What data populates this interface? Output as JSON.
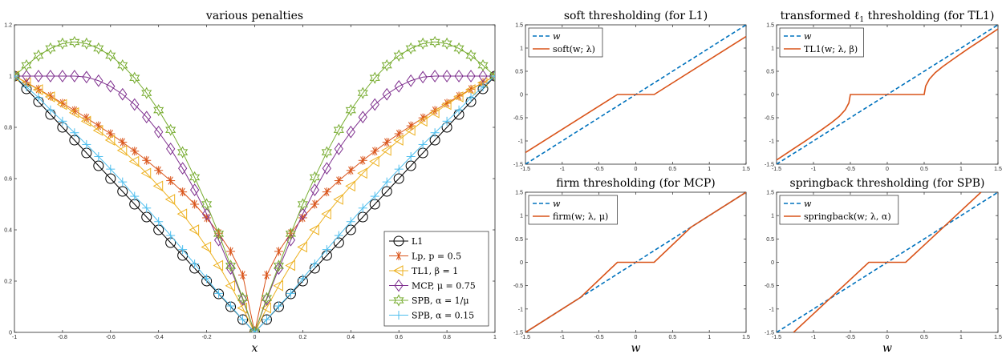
{
  "chart_data": [
    {
      "id": "penalties",
      "type": "line",
      "title": "various penalties",
      "xlabel": "x",
      "ylabel": "",
      "xlim": [
        -1,
        1
      ],
      "ylim": [
        0,
        1.2
      ],
      "xticks": [
        "-1",
        "-0.8",
        "-0.6",
        "-0.4",
        "-0.2",
        "0",
        "0.2",
        "0.4",
        "0.6",
        "0.8",
        "1"
      ],
      "yticks": [
        "0",
        "0.2",
        "0.4",
        "0.6",
        "0.8",
        "1",
        "1.2"
      ],
      "legend_position": "bottom-right",
      "series": [
        {
          "name": "L1",
          "color": "#000000",
          "marker": "circle",
          "x": [
            -1,
            -0.95,
            -0.9,
            -0.85,
            -0.8,
            -0.75,
            -0.7,
            -0.65,
            -0.6,
            -0.55,
            -0.5,
            -0.45,
            -0.4,
            -0.35,
            -0.3,
            -0.25,
            -0.2,
            -0.15,
            -0.1,
            -0.05,
            0,
            0.05,
            0.1,
            0.15,
            0.2,
            0.25,
            0.3,
            0.35,
            0.4,
            0.45,
            0.5,
            0.55,
            0.6,
            0.65,
            0.7,
            0.75,
            0.8,
            0.85,
            0.9,
            0.95,
            1
          ],
          "y": [
            1,
            0.95,
            0.9,
            0.85,
            0.8,
            0.75,
            0.7,
            0.65,
            0.6,
            0.55,
            0.5,
            0.45,
            0.4,
            0.35,
            0.3,
            0.25,
            0.2,
            0.15,
            0.1,
            0.05,
            0,
            0.05,
            0.1,
            0.15,
            0.2,
            0.25,
            0.3,
            0.35,
            0.4,
            0.45,
            0.5,
            0.55,
            0.6,
            0.65,
            0.7,
            0.75,
            0.8,
            0.85,
            0.9,
            0.95,
            1
          ]
        },
        {
          "name": "Lp, p = 0.5",
          "color": "#D95319",
          "marker": "asterisk",
          "x": [
            -1,
            -0.95,
            -0.9,
            -0.85,
            -0.8,
            -0.75,
            -0.7,
            -0.65,
            -0.6,
            -0.55,
            -0.5,
            -0.45,
            -0.4,
            -0.35,
            -0.3,
            -0.25,
            -0.2,
            -0.15,
            -0.1,
            -0.05,
            0,
            0.05,
            0.1,
            0.15,
            0.2,
            0.25,
            0.3,
            0.35,
            0.4,
            0.45,
            0.5,
            0.55,
            0.6,
            0.65,
            0.7,
            0.75,
            0.8,
            0.85,
            0.9,
            0.95,
            1
          ],
          "y": [
            1,
            0.975,
            0.949,
            0.922,
            0.894,
            0.866,
            0.837,
            0.806,
            0.775,
            0.742,
            0.707,
            0.671,
            0.632,
            0.592,
            0.548,
            0.5,
            0.447,
            0.387,
            0.316,
            0.224,
            0,
            0.224,
            0.316,
            0.387,
            0.447,
            0.5,
            0.548,
            0.592,
            0.632,
            0.671,
            0.707,
            0.742,
            0.775,
            0.806,
            0.837,
            0.866,
            0.894,
            0.922,
            0.949,
            0.975,
            1
          ]
        },
        {
          "name": "TL1, β = 1",
          "color": "#EDB120",
          "marker": "triangle-left",
          "x": [
            -1,
            -0.95,
            -0.9,
            -0.85,
            -0.8,
            -0.75,
            -0.7,
            -0.65,
            -0.6,
            -0.55,
            -0.5,
            -0.45,
            -0.4,
            -0.35,
            -0.3,
            -0.25,
            -0.2,
            -0.15,
            -0.1,
            -0.05,
            0,
            0.05,
            0.1,
            0.15,
            0.2,
            0.25,
            0.3,
            0.35,
            0.4,
            0.45,
            0.5,
            0.55,
            0.6,
            0.65,
            0.7,
            0.75,
            0.8,
            0.85,
            0.9,
            0.95,
            1
          ],
          "y": [
            1,
            0.974,
            0.947,
            0.919,
            0.889,
            0.857,
            0.824,
            0.788,
            0.75,
            0.71,
            0.667,
            0.621,
            0.571,
            0.519,
            0.462,
            0.4,
            0.333,
            0.261,
            0.182,
            0.095,
            0,
            0.095,
            0.182,
            0.261,
            0.333,
            0.4,
            0.462,
            0.519,
            0.571,
            0.621,
            0.667,
            0.71,
            0.75,
            0.788,
            0.824,
            0.857,
            0.889,
            0.919,
            0.947,
            0.974,
            1
          ]
        },
        {
          "name": "MCP, μ = 0.75",
          "color": "#7E2F8E",
          "marker": "diamond",
          "x": [
            -1,
            -0.95,
            -0.9,
            -0.85,
            -0.8,
            -0.75,
            -0.7,
            -0.65,
            -0.6,
            -0.55,
            -0.5,
            -0.45,
            -0.4,
            -0.35,
            -0.3,
            -0.25,
            -0.2,
            -0.15,
            -0.1,
            -0.05,
            0,
            0.05,
            0.1,
            0.15,
            0.2,
            0.25,
            0.3,
            0.35,
            0.4,
            0.45,
            0.5,
            0.55,
            0.6,
            0.65,
            0.7,
            0.75,
            0.8,
            0.85,
            0.9,
            0.95,
            1
          ],
          "y": [
            1,
            1,
            1,
            1,
            1,
            1,
            0.996,
            0.982,
            0.96,
            0.929,
            0.889,
            0.84,
            0.782,
            0.716,
            0.64,
            0.556,
            0.462,
            0.36,
            0.249,
            0.129,
            0,
            0.129,
            0.249,
            0.36,
            0.462,
            0.556,
            0.64,
            0.716,
            0.782,
            0.84,
            0.889,
            0.929,
            0.96,
            0.982,
            0.996,
            1,
            1,
            1,
            1,
            1,
            1
          ]
        },
        {
          "name": "SPB, α = 1/μ",
          "color": "#77AC30",
          "marker": "hexagram",
          "x": [
            -1,
            -0.95,
            -0.9,
            -0.85,
            -0.8,
            -0.75,
            -0.7,
            -0.65,
            -0.6,
            -0.55,
            -0.5,
            -0.45,
            -0.4,
            -0.35,
            -0.3,
            -0.25,
            -0.2,
            -0.15,
            -0.1,
            -0.05,
            0,
            0.05,
            0.1,
            0.15,
            0.2,
            0.25,
            0.3,
            0.35,
            0.4,
            0.45,
            0.5,
            0.55,
            0.6,
            0.65,
            0.7,
            0.75,
            0.8,
            0.85,
            0.9,
            0.95,
            1
          ],
          "y": [
            1,
            1.042,
            1.08,
            1.108,
            1.127,
            1.133,
            1.127,
            1.108,
            1.08,
            1.042,
            0.993,
            0.934,
            0.867,
            0.79,
            0.703,
            0.605,
            0.5,
            0.385,
            0.26,
            0.134,
            0,
            0.134,
            0.26,
            0.385,
            0.5,
            0.605,
            0.703,
            0.79,
            0.867,
            0.934,
            0.993,
            1.042,
            1.08,
            1.108,
            1.127,
            1.133,
            1.127,
            1.108,
            1.08,
            1.042,
            1
          ]
        },
        {
          "name": "SPB, α = 0.15",
          "color": "#4DBEEE",
          "marker": "plus",
          "x": [
            -1,
            -0.95,
            -0.9,
            -0.85,
            -0.8,
            -0.75,
            -0.7,
            -0.65,
            -0.6,
            -0.55,
            -0.5,
            -0.45,
            -0.4,
            -0.35,
            -0.3,
            -0.25,
            -0.2,
            -0.15,
            -0.1,
            -0.05,
            0,
            0.05,
            0.1,
            0.15,
            0.2,
            0.25,
            0.3,
            0.35,
            0.4,
            0.45,
            0.5,
            0.55,
            0.6,
            0.65,
            0.7,
            0.75,
            0.8,
            0.85,
            0.9,
            0.95,
            1
          ],
          "y": [
            1,
            0.958,
            0.916,
            0.868,
            0.824,
            0.779,
            0.733,
            0.686,
            0.637,
            0.587,
            0.531,
            0.485,
            0.432,
            0.378,
            0.323,
            0.267,
            0.21,
            0.152,
            0.103,
            0.05,
            0,
            0.05,
            0.103,
            0.152,
            0.21,
            0.267,
            0.323,
            0.378,
            0.432,
            0.485,
            0.531,
            0.587,
            0.637,
            0.686,
            0.733,
            0.779,
            0.824,
            0.868,
            0.916,
            0.958,
            1
          ]
        }
      ]
    },
    {
      "id": "soft",
      "type": "line",
      "title": "soft thresholding (for L1)",
      "xlabel": "",
      "xlim": [
        -1.5,
        1.5
      ],
      "ylim": [
        -1.5,
        1.5
      ],
      "xticks": [
        "-1.5",
        "-1",
        "-0.5",
        "0",
        "0.5",
        "1",
        "1.5"
      ],
      "yticks": [
        "-1.5",
        "-1",
        "-0.5",
        "0",
        "0.5",
        "1",
        "1.5"
      ],
      "legend_position": "top-left",
      "series": [
        {
          "name": "w",
          "color": "#0072BD",
          "dash": true,
          "x": [
            -1.5,
            1.5
          ],
          "y": [
            -1.5,
            1.5
          ]
        },
        {
          "name": "soft(w; λ)",
          "color": "#D95319",
          "dash": false,
          "x": [
            -1.5,
            -0.25,
            0.25,
            1.5
          ],
          "y": [
            -1.25,
            0,
            0,
            1.25
          ]
        }
      ]
    },
    {
      "id": "tl1",
      "type": "line",
      "title": "transformed ℓ1 thresholding (for TL1)",
      "xlabel": "",
      "xlim": [
        -1.5,
        1.5
      ],
      "ylim": [
        -1.5,
        1.5
      ],
      "xticks": [
        "-1.5",
        "-1",
        "-0.5",
        "0",
        "0.5",
        "1",
        "1.5"
      ],
      "yticks": [
        "-1.5",
        "-1",
        "-0.5",
        "0",
        "0.5",
        "1",
        "1.5"
      ],
      "legend_position": "top-left",
      "series": [
        {
          "name": "w",
          "color": "#0072BD",
          "dash": true,
          "x": [
            -1.5,
            1.5
          ],
          "y": [
            -1.5,
            1.5
          ]
        },
        {
          "name": "TL1(w; λ, β)",
          "color": "#D95319",
          "dash": false,
          "x": [
            -1.5,
            -1.3,
            -1.1,
            -0.9,
            -0.75,
            -0.65,
            -0.57,
            -0.52,
            -0.5,
            0.5,
            0.52,
            0.57,
            0.65,
            0.75,
            0.9,
            1.1,
            1.3,
            1.5
          ],
          "y": [
            -1.41,
            -1.2,
            -0.99,
            -0.77,
            -0.6,
            -0.47,
            -0.33,
            -0.18,
            0,
            0,
            0.18,
            0.33,
            0.47,
            0.6,
            0.77,
            0.99,
            1.2,
            1.41
          ]
        }
      ]
    },
    {
      "id": "firm",
      "type": "line",
      "title": "firm thresholding (for MCP)",
      "xlabel": "w",
      "xlim": [
        -1.5,
        1.5
      ],
      "ylim": [
        -1.5,
        1.5
      ],
      "xticks": [
        "-1.5",
        "-1",
        "-0.5",
        "0",
        "0.5",
        "1",
        "1.5"
      ],
      "yticks": [
        "-1.5",
        "-1",
        "-0.5",
        "0",
        "0.5",
        "1",
        "1.5"
      ],
      "legend_position": "top-left",
      "series": [
        {
          "name": "w",
          "color": "#0072BD",
          "dash": true,
          "x": [
            -1.5,
            1.5
          ],
          "y": [
            -1.5,
            1.5
          ]
        },
        {
          "name": "firm(w; λ, μ)",
          "color": "#D95319",
          "dash": false,
          "x": [
            -1.5,
            -0.75,
            -0.25,
            0.25,
            0.75,
            1.5
          ],
          "y": [
            -1.5,
            -0.75,
            0,
            0,
            0.75,
            1.5
          ]
        }
      ]
    },
    {
      "id": "springback",
      "type": "line",
      "title": "springback thresholding (for SPB)",
      "xlabel": "w",
      "xlim": [
        -1.5,
        1.5
      ],
      "ylim": [
        -1.5,
        1.5
      ],
      "xticks": [
        "-1.5",
        "-1",
        "-0.5",
        "0",
        "0.5",
        "1",
        "1.5"
      ],
      "yticks": [
        "-1.5",
        "-1",
        "-0.5",
        "0",
        "0.5",
        "1",
        "1.5"
      ],
      "legend_position": "top-left",
      "series": [
        {
          "name": "w",
          "color": "#0072BD",
          "dash": true,
          "x": [
            -1.5,
            1.5
          ],
          "y": [
            -1.5,
            1.5
          ]
        },
        {
          "name": "springback(w; λ, α)",
          "color": "#D95319",
          "dash": false,
          "x": [
            -1.27,
            -0.25,
            0.25,
            1.27
          ],
          "y": [
            -1.5,
            0,
            0,
            1.5
          ]
        }
      ]
    }
  ]
}
